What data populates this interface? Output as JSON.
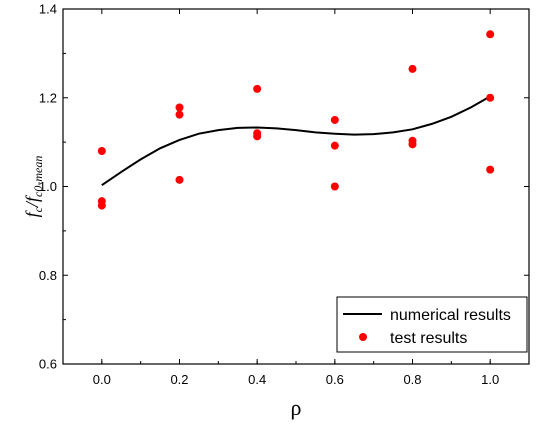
{
  "chart_data": {
    "type": "scatter",
    "xlabel": "ρ",
    "ylabel": {
      "base": "f",
      "sub1": "c",
      "mid": "/f",
      "sub2": "c0-mean"
    },
    "xlim": [
      -0.1,
      1.1
    ],
    "ylim": [
      0.6,
      1.4
    ],
    "x_ticks": [
      0.0,
      0.2,
      0.4,
      0.6,
      0.8,
      1.0
    ],
    "x_tick_labels": [
      "0.0",
      "0.2",
      "0.4",
      "0.6",
      "0.8",
      "1.0"
    ],
    "y_ticks": [
      0.6,
      0.8,
      1.0,
      1.2,
      1.4
    ],
    "y_tick_labels": [
      "0.6",
      "0.8",
      "1.0",
      "1.2",
      "1.4"
    ],
    "grid": false,
    "legend_position": "bottom-right",
    "series": [
      {
        "name": "numerical results",
        "kind": "line",
        "color": "#000000",
        "x": [
          0.0,
          0.05,
          0.1,
          0.15,
          0.2,
          0.25,
          0.3,
          0.35,
          0.4,
          0.45,
          0.5,
          0.55,
          0.6,
          0.65,
          0.7,
          0.75,
          0.8,
          0.85,
          0.9,
          0.95,
          1.0
        ],
        "y": [
          1.003,
          1.033,
          1.061,
          1.086,
          1.105,
          1.119,
          1.127,
          1.132,
          1.133,
          1.131,
          1.127,
          1.122,
          1.119,
          1.117,
          1.118,
          1.122,
          1.129,
          1.141,
          1.157,
          1.178,
          1.203
        ]
      },
      {
        "name": "test results",
        "kind": "scatter",
        "color": "#ff0000",
        "x": [
          0.0,
          0.0,
          0.0,
          0.2,
          0.2,
          0.2,
          0.4,
          0.4,
          0.4,
          0.6,
          0.6,
          0.6,
          0.8,
          0.8,
          0.8,
          1.0,
          1.0,
          1.0
        ],
        "y": [
          1.08,
          0.967,
          0.957,
          1.178,
          1.162,
          1.015,
          1.22,
          1.12,
          1.113,
          1.15,
          1.092,
          1.0,
          1.265,
          1.103,
          1.095,
          1.343,
          1.2,
          1.038
        ]
      }
    ]
  }
}
